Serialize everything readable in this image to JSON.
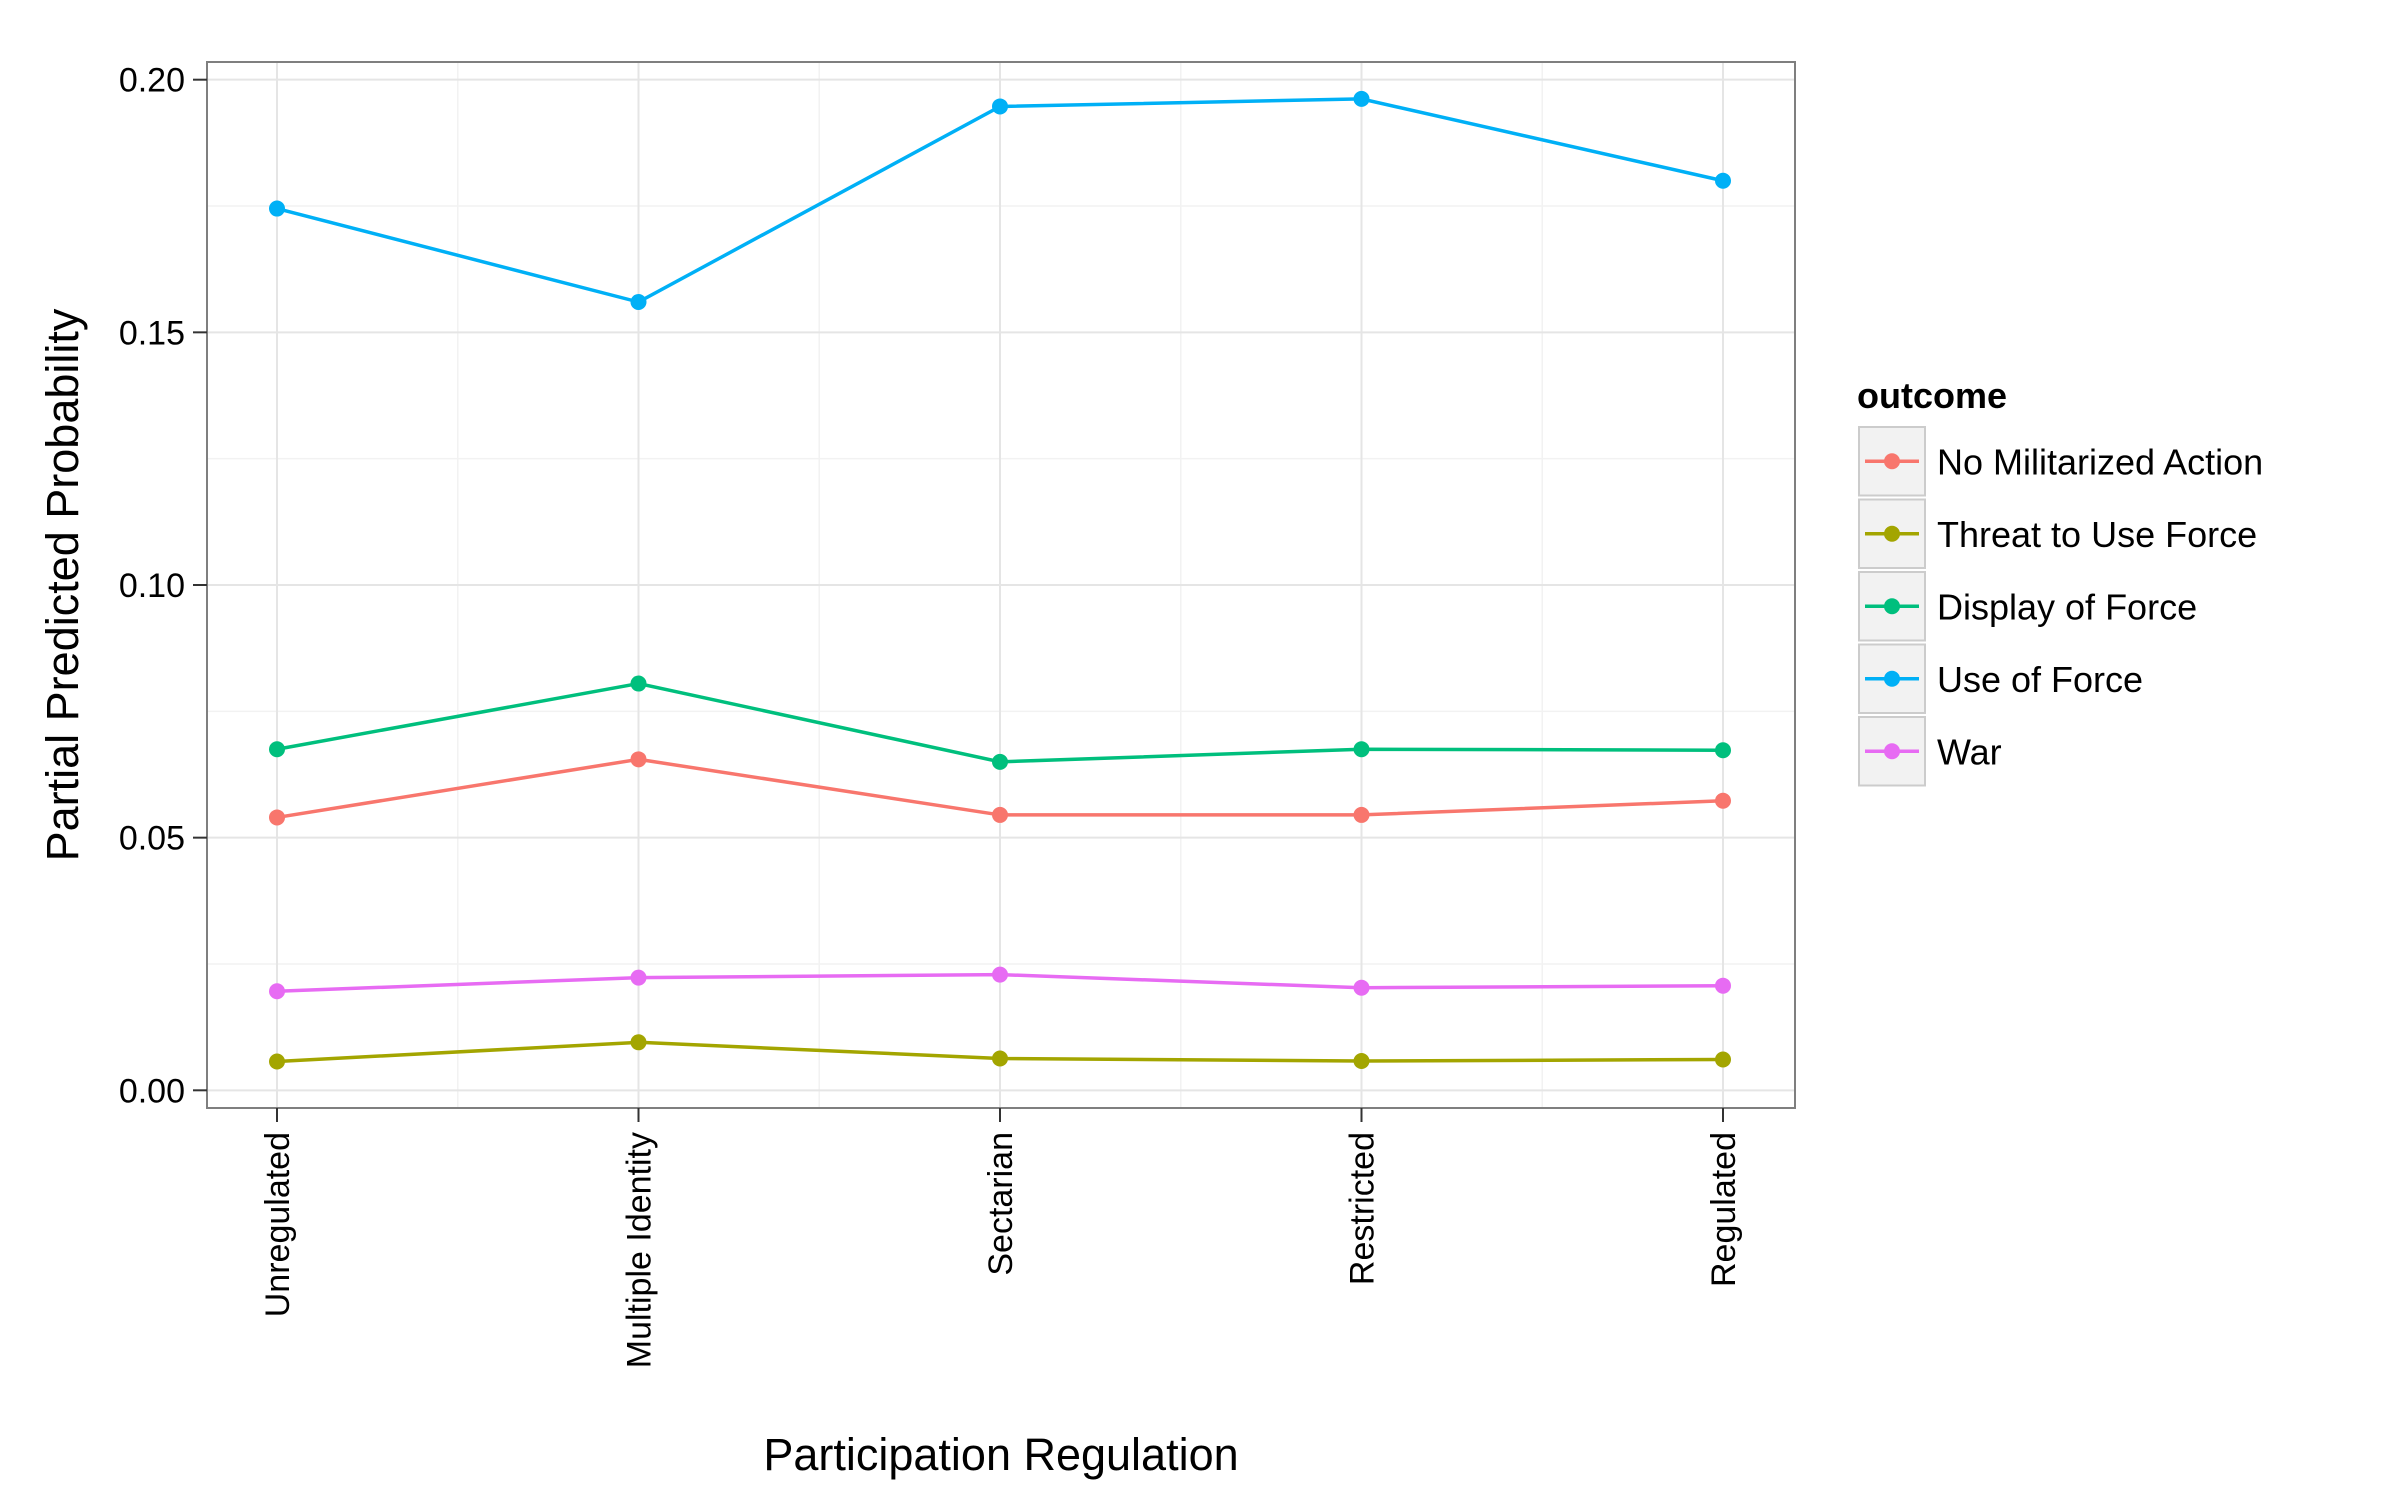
{
  "chart_data": {
    "type": "line",
    "title": "",
    "xlabel": "Participation Regulation",
    "ylabel": "Partial Predicted Probability",
    "categories": [
      "Unregulated",
      "Multiple Identity",
      "Sectarian",
      "Restricted",
      "Regulated"
    ],
    "ylim": [
      -0.0035,
      0.2035
    ],
    "yticks": [
      0.0,
      0.05,
      0.1,
      0.15,
      0.2
    ],
    "ytick_labels": [
      "0.00",
      "0.05",
      "0.10",
      "0.15",
      "0.20"
    ],
    "grid": true,
    "legend_position": "right",
    "legend_title": "outcome",
    "series": [
      {
        "name": "No Militarized Action",
        "color": "#F8766D",
        "values": [
          0.054,
          0.0655,
          0.0545,
          0.0545,
          0.0573
        ]
      },
      {
        "name": "Threat to Use Force",
        "color": "#A3A500",
        "values": [
          0.0057,
          0.0095,
          0.0063,
          0.0058,
          0.0061
        ]
      },
      {
        "name": "Display of Force",
        "color": "#00BF7D",
        "values": [
          0.0675,
          0.0805,
          0.065,
          0.0675,
          0.0673
        ]
      },
      {
        "name": "Use of Force",
        "color": "#00B0F6",
        "values": [
          0.1745,
          0.156,
          0.1947,
          0.1962,
          0.18
        ]
      },
      {
        "name": "War",
        "color": "#E76BF3",
        "values": [
          0.0196,
          0.0223,
          0.0229,
          0.0203,
          0.0207
        ]
      }
    ]
  }
}
